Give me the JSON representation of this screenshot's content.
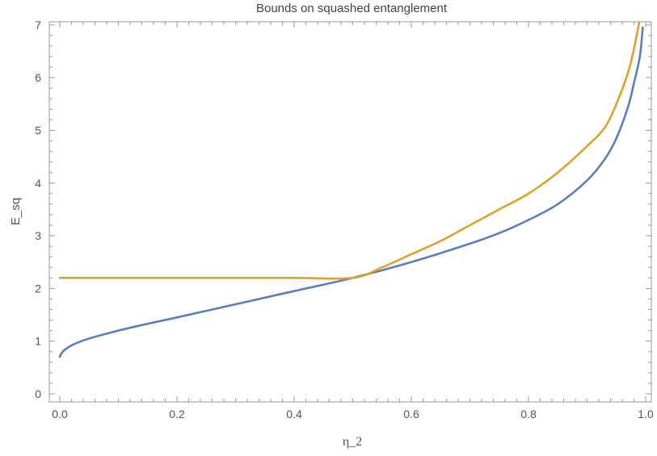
{
  "chart_data": {
    "type": "line",
    "title": "Bounds on squashed entanglement",
    "xlabel": "η_2",
    "ylabel": "E_sq",
    "xlim": [
      0.0,
      1.0
    ],
    "ylim": [
      0,
      7.2
    ],
    "x_ticks": [
      "0.0",
      "0.2",
      "0.4",
      "0.6",
      "0.8",
      "1.0"
    ],
    "y_ticks": [
      "0",
      "1",
      "2",
      "3",
      "4",
      "5",
      "6",
      "7"
    ],
    "grid": false,
    "colors": {
      "series1": "#5b7fbd",
      "series2": "#e0a12a"
    },
    "series": [
      {
        "color": "#5b7fbd",
        "x": [
          0.0,
          0.005,
          0.02,
          0.05,
          0.1,
          0.15,
          0.2,
          0.3,
          0.4,
          0.5,
          0.6,
          0.7,
          0.75,
          0.8,
          0.85,
          0.9,
          0.93,
          0.95,
          0.97,
          0.98,
          0.99,
          0.995
        ],
        "y": [
          0.7,
          0.8,
          0.92,
          1.05,
          1.2,
          1.33,
          1.45,
          1.7,
          1.95,
          2.2,
          2.5,
          2.85,
          3.05,
          3.3,
          3.6,
          4.05,
          4.45,
          4.85,
          5.45,
          5.9,
          6.4,
          6.95
        ]
      },
      {
        "color": "#e0a12a",
        "x": [
          0.0,
          0.1,
          0.2,
          0.3,
          0.4,
          0.5,
          0.55,
          0.6,
          0.65,
          0.7,
          0.75,
          0.8,
          0.85,
          0.9,
          0.93,
          0.95,
          0.97,
          0.98,
          0.99,
          0.995
        ],
        "y": [
          2.2,
          2.2,
          2.2,
          2.2,
          2.2,
          2.2,
          2.4,
          2.65,
          2.9,
          3.2,
          3.5,
          3.8,
          4.2,
          4.7,
          5.05,
          5.5,
          6.1,
          6.55,
          7.1,
          7.3
        ]
      }
    ]
  }
}
